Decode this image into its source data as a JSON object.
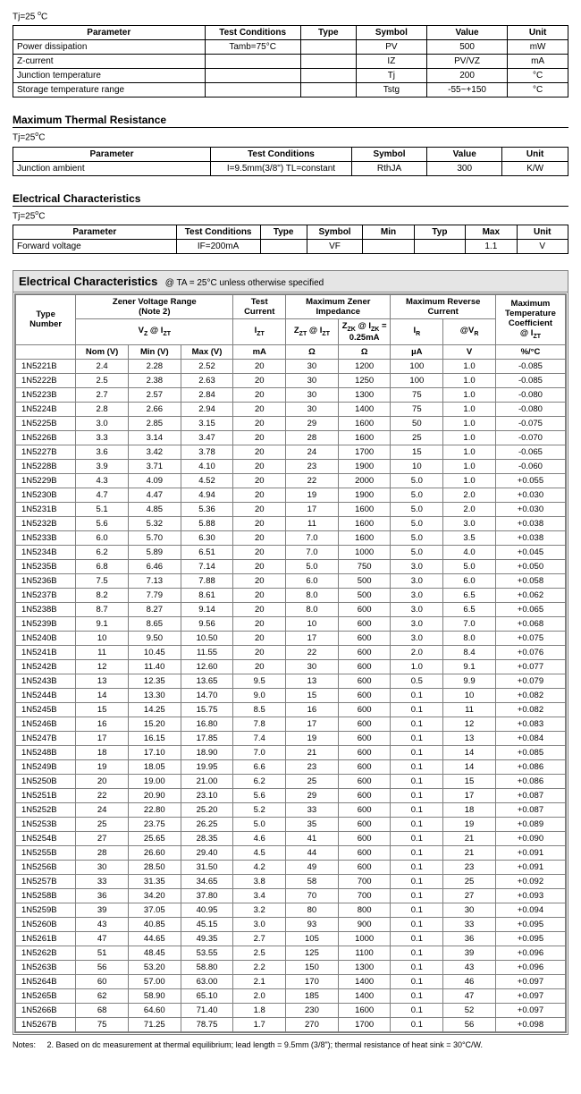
{
  "tjnote": "Tj=25",
  "tjunit": "C",
  "maxratings_headers": [
    "Parameter",
    "Test Conditions",
    "Type",
    "Symbol",
    "Value",
    "Unit"
  ],
  "maxratings_rows": [
    [
      "Power dissipation",
      "Tamb=75°C",
      "",
      "PV",
      "500",
      "mW"
    ],
    [
      "Z-current",
      "",
      "",
      "IZ",
      "PV/VZ",
      "mA"
    ],
    [
      "Junction temperature",
      "",
      "",
      "Tj",
      "200",
      "°C"
    ],
    [
      "Storage temperature range",
      "",
      "",
      "Tstg",
      "-55~+150",
      "°C"
    ]
  ],
  "thermal_title": "Maximum Thermal Resistance",
  "thermal_headers": [
    "Parameter",
    "Test Conditions",
    "Symbol",
    "Value",
    "Unit"
  ],
  "thermal_rows": [
    [
      "Junction ambient",
      "I=9.5mm(3/8\") TL=constant",
      "RthJA",
      "300",
      "K/W"
    ]
  ],
  "ec1_title": "Electrical Characteristics",
  "ec1_headers": [
    "Parameter",
    "Test Conditions",
    "Type",
    "Symbol",
    "Min",
    "Typ",
    "Max",
    "Unit"
  ],
  "ec1_rows": [
    [
      "Forward voltage",
      "IF=200mA",
      "",
      "VF",
      "",
      "",
      "1.1",
      "V"
    ]
  ],
  "ec_title": "Electrical Characteristics",
  "ec_cond": "@ TA = 25°C unless otherwise specified",
  "ec_col_units": [
    "",
    "Nom (V)",
    "Min (V)",
    "Max (V)",
    "mA",
    "Ω",
    "Ω",
    "µA",
    "V",
    "%/°C"
  ],
  "ec_rows": [
    [
      "1N5221B",
      "2.4",
      "2.28",
      "2.52",
      "20",
      "30",
      "1200",
      "100",
      "1.0",
      "-0.085"
    ],
    [
      "1N5222B",
      "2.5",
      "2.38",
      "2.63",
      "20",
      "30",
      "1250",
      "100",
      "1.0",
      "-0.085"
    ],
    [
      "1N5223B",
      "2.7",
      "2.57",
      "2.84",
      "20",
      "30",
      "1300",
      "75",
      "1.0",
      "-0.080"
    ],
    [
      "1N5224B",
      "2.8",
      "2.66",
      "2.94",
      "20",
      "30",
      "1400",
      "75",
      "1.0",
      "-0.080"
    ],
    [
      "1N5225B",
      "3.0",
      "2.85",
      "3.15",
      "20",
      "29",
      "1600",
      "50",
      "1.0",
      "-0.075"
    ],
    [
      "1N5226B",
      "3.3",
      "3.14",
      "3.47",
      "20",
      "28",
      "1600",
      "25",
      "1.0",
      "-0.070"
    ],
    [
      "1N5227B",
      "3.6",
      "3.42",
      "3.78",
      "20",
      "24",
      "1700",
      "15",
      "1.0",
      "-0.065"
    ],
    [
      "1N5228B",
      "3.9",
      "3.71",
      "4.10",
      "20",
      "23",
      "1900",
      "10",
      "1.0",
      "-0.060"
    ],
    [
      "1N5229B",
      "4.3",
      "4.09",
      "4.52",
      "20",
      "22",
      "2000",
      "5.0",
      "1.0",
      "+0.055"
    ],
    [
      "1N5230B",
      "4.7",
      "4.47",
      "4.94",
      "20",
      "19",
      "1900",
      "5.0",
      "2.0",
      "+0.030"
    ],
    [
      "1N5231B",
      "5.1",
      "4.85",
      "5.36",
      "20",
      "17",
      "1600",
      "5.0",
      "2.0",
      "+0.030"
    ],
    [
      "1N5232B",
      "5.6",
      "5.32",
      "5.88",
      "20",
      "11",
      "1600",
      "5.0",
      "3.0",
      "+0.038"
    ],
    [
      "1N5233B",
      "6.0",
      "5.70",
      "6.30",
      "20",
      "7.0",
      "1600",
      "5.0",
      "3.5",
      "+0.038"
    ],
    [
      "1N5234B",
      "6.2",
      "5.89",
      "6.51",
      "20",
      "7.0",
      "1000",
      "5.0",
      "4.0",
      "+0.045"
    ],
    [
      "1N5235B",
      "6.8",
      "6.46",
      "7.14",
      "20",
      "5.0",
      "750",
      "3.0",
      "5.0",
      "+0.050"
    ],
    [
      "1N5236B",
      "7.5",
      "7.13",
      "7.88",
      "20",
      "6.0",
      "500",
      "3.0",
      "6.0",
      "+0.058"
    ],
    [
      "1N5237B",
      "8.2",
      "7.79",
      "8.61",
      "20",
      "8.0",
      "500",
      "3.0",
      "6.5",
      "+0.062"
    ],
    [
      "1N5238B",
      "8.7",
      "8.27",
      "9.14",
      "20",
      "8.0",
      "600",
      "3.0",
      "6.5",
      "+0.065"
    ],
    [
      "1N5239B",
      "9.1",
      "8.65",
      "9.56",
      "20",
      "10",
      "600",
      "3.0",
      "7.0",
      "+0.068"
    ],
    [
      "1N5240B",
      "10",
      "9.50",
      "10.50",
      "20",
      "17",
      "600",
      "3.0",
      "8.0",
      "+0.075"
    ],
    [
      "1N5241B",
      "11",
      "10.45",
      "11.55",
      "20",
      "22",
      "600",
      "2.0",
      "8.4",
      "+0.076"
    ],
    [
      "1N5242B",
      "12",
      "11.40",
      "12.60",
      "20",
      "30",
      "600",
      "1.0",
      "9.1",
      "+0.077"
    ],
    [
      "1N5243B",
      "13",
      "12.35",
      "13.65",
      "9.5",
      "13",
      "600",
      "0.5",
      "9.9",
      "+0.079"
    ],
    [
      "1N5244B",
      "14",
      "13.30",
      "14.70",
      "9.0",
      "15",
      "600",
      "0.1",
      "10",
      "+0.082"
    ],
    [
      "1N5245B",
      "15",
      "14.25",
      "15.75",
      "8.5",
      "16",
      "600",
      "0.1",
      "11",
      "+0.082"
    ],
    [
      "1N5246B",
      "16",
      "15.20",
      "16.80",
      "7.8",
      "17",
      "600",
      "0.1",
      "12",
      "+0.083"
    ],
    [
      "1N5247B",
      "17",
      "16.15",
      "17.85",
      "7.4",
      "19",
      "600",
      "0.1",
      "13",
      "+0.084"
    ],
    [
      "1N5248B",
      "18",
      "17.10",
      "18.90",
      "7.0",
      "21",
      "600",
      "0.1",
      "14",
      "+0.085"
    ],
    [
      "1N5249B",
      "19",
      "18.05",
      "19.95",
      "6.6",
      "23",
      "600",
      "0.1",
      "14",
      "+0.086"
    ],
    [
      "1N5250B",
      "20",
      "19.00",
      "21.00",
      "6.2",
      "25",
      "600",
      "0.1",
      "15",
      "+0.086"
    ],
    [
      "1N5251B",
      "22",
      "20.90",
      "23.10",
      "5.6",
      "29",
      "600",
      "0.1",
      "17",
      "+0.087"
    ],
    [
      "1N5252B",
      "24",
      "22.80",
      "25.20",
      "5.2",
      "33",
      "600",
      "0.1",
      "18",
      "+0.087"
    ],
    [
      "1N5253B",
      "25",
      "23.75",
      "26.25",
      "5.0",
      "35",
      "600",
      "0.1",
      "19",
      "+0.089"
    ],
    [
      "1N5254B",
      "27",
      "25.65",
      "28.35",
      "4.6",
      "41",
      "600",
      "0.1",
      "21",
      "+0.090"
    ],
    [
      "1N5255B",
      "28",
      "26.60",
      "29.40",
      "4.5",
      "44",
      "600",
      "0.1",
      "21",
      "+0.091"
    ],
    [
      "1N5256B",
      "30",
      "28.50",
      "31.50",
      "4.2",
      "49",
      "600",
      "0.1",
      "23",
      "+0.091"
    ],
    [
      "1N5257B",
      "33",
      "31.35",
      "34.65",
      "3.8",
      "58",
      "700",
      "0.1",
      "25",
      "+0.092"
    ],
    [
      "1N5258B",
      "36",
      "34.20",
      "37.80",
      "3.4",
      "70",
      "700",
      "0.1",
      "27",
      "+0.093"
    ],
    [
      "1N5259B",
      "39",
      "37.05",
      "40.95",
      "3.2",
      "80",
      "800",
      "0.1",
      "30",
      "+0.094"
    ],
    [
      "1N5260B",
      "43",
      "40.85",
      "45.15",
      "3.0",
      "93",
      "900",
      "0.1",
      "33",
      "+0.095"
    ],
    [
      "1N5261B",
      "47",
      "44.65",
      "49.35",
      "2.7",
      "105",
      "1000",
      "0.1",
      "36",
      "+0.095"
    ],
    [
      "1N5262B",
      "51",
      "48.45",
      "53.55",
      "2.5",
      "125",
      "1100",
      "0.1",
      "39",
      "+0.096"
    ],
    [
      "1N5263B",
      "56",
      "53.20",
      "58.80",
      "2.2",
      "150",
      "1300",
      "0.1",
      "43",
      "+0.096"
    ],
    [
      "1N5264B",
      "60",
      "57.00",
      "63.00",
      "2.1",
      "170",
      "1400",
      "0.1",
      "46",
      "+0.097"
    ],
    [
      "1N5265B",
      "62",
      "58.90",
      "65.10",
      "2.0",
      "185",
      "1400",
      "0.1",
      "47",
      "+0.097"
    ],
    [
      "1N5266B",
      "68",
      "64.60",
      "71.40",
      "1.8",
      "230",
      "1600",
      "0.1",
      "52",
      "+0.097"
    ],
    [
      "1N5267B",
      "75",
      "71.25",
      "78.75",
      "1.7",
      "270",
      "1700",
      "0.1",
      "56",
      "+0.098"
    ]
  ],
  "notes_label": "Notes:",
  "notes_text": "2. Based on dc measurement at thermal equilibrium; lead length = 9.5mm (3/8\"); thermal resistance of heat sink = 30°C/W."
}
